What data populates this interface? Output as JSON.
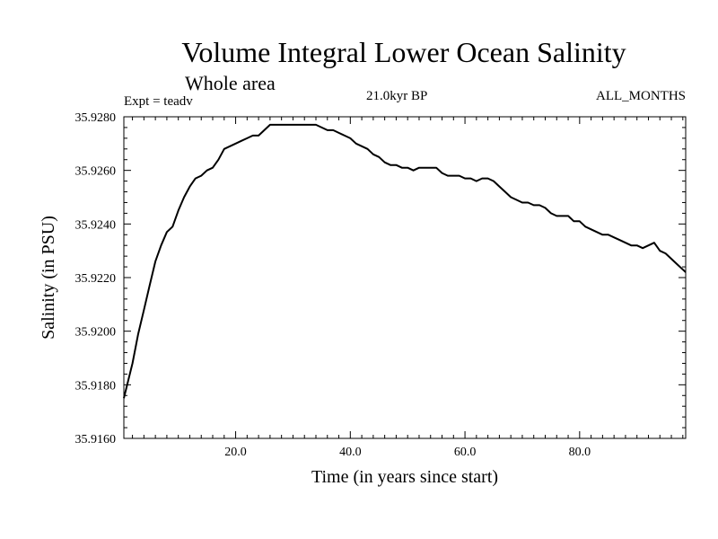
{
  "header": {
    "title": "Volume Integral Lower Ocean Salinity",
    "subtitle": "Whole area",
    "expt": "Expt = teadv",
    "period": "21.0kyr BP",
    "months": "ALL_MONTHS"
  },
  "chart_data": {
    "type": "line",
    "title": "Volume Integral Lower Ocean Salinity",
    "subtitle": "Whole area",
    "xlabel": "Time (in years since start)",
    "ylabel": "Salinity (in PSU)",
    "xlim": [
      0.5,
      98.5
    ],
    "ylim": [
      35.916,
      35.928
    ],
    "x_ticks": [
      20,
      40,
      60,
      80
    ],
    "x_tick_labels": [
      "20.0",
      "40.0",
      "60.0",
      "80.0"
    ],
    "y_ticks": [
      35.916,
      35.918,
      35.92,
      35.922,
      35.924,
      35.926,
      35.928
    ],
    "y_tick_labels": [
      "35.9160",
      "35.9180",
      "35.9200",
      "35.9220",
      "35.9240",
      "35.9260",
      "35.9280"
    ],
    "grid": false,
    "series": [
      {
        "name": "Expt = teadv",
        "color": "#000000",
        "x": [
          0.5,
          2,
          3,
          4,
          5,
          6,
          7,
          8,
          9,
          10,
          11,
          12,
          13,
          14,
          15,
          16,
          17,
          18,
          19,
          20,
          21,
          22,
          23,
          24,
          25,
          26,
          27,
          28,
          29,
          30,
          31,
          32,
          33,
          34,
          35,
          36,
          37,
          38,
          39,
          40,
          41,
          42,
          43,
          44,
          45,
          46,
          47,
          48,
          49,
          50,
          51,
          52,
          53,
          54,
          55,
          56,
          57,
          58,
          59,
          60,
          61,
          62,
          63,
          64,
          65,
          66,
          67,
          68,
          69,
          70,
          71,
          72,
          73,
          74,
          75,
          76,
          77,
          78,
          79,
          80,
          81,
          82,
          83,
          84,
          85,
          86,
          87,
          88,
          89,
          90,
          91,
          92,
          93,
          94,
          95,
          96,
          97,
          98.5
        ],
        "y": [
          35.9175,
          35.9188,
          35.9199,
          35.9208,
          35.9217,
          35.9226,
          35.9232,
          35.9237,
          35.9239,
          35.9245,
          35.925,
          35.9254,
          35.9257,
          35.9258,
          35.926,
          35.9261,
          35.9264,
          35.9268,
          35.9269,
          35.927,
          35.9271,
          35.9272,
          35.9273,
          35.9273,
          35.9275,
          35.9277,
          35.9277,
          35.9277,
          35.9277,
          35.9277,
          35.9277,
          35.9277,
          35.9277,
          35.9277,
          35.9276,
          35.9275,
          35.9275,
          35.9274,
          35.9273,
          35.9272,
          35.927,
          35.9269,
          35.9268,
          35.9266,
          35.9265,
          35.9263,
          35.9262,
          35.9262,
          35.9261,
          35.9261,
          35.926,
          35.9261,
          35.9261,
          35.9261,
          35.9261,
          35.9259,
          35.9258,
          35.9258,
          35.9258,
          35.9257,
          35.9257,
          35.9256,
          35.9257,
          35.9257,
          35.9256,
          35.9254,
          35.9252,
          35.925,
          35.9249,
          35.9248,
          35.9248,
          35.9247,
          35.9247,
          35.9246,
          35.9244,
          35.9243,
          35.9243,
          35.9243,
          35.9241,
          35.9241,
          35.9239,
          35.9238,
          35.9237,
          35.9236,
          35.9236,
          35.9235,
          35.9234,
          35.9233,
          35.9232,
          35.9232,
          35.9231,
          35.9232,
          35.9233,
          35.923,
          35.9229,
          35.9227,
          35.9225,
          35.9222
        ]
      }
    ]
  }
}
